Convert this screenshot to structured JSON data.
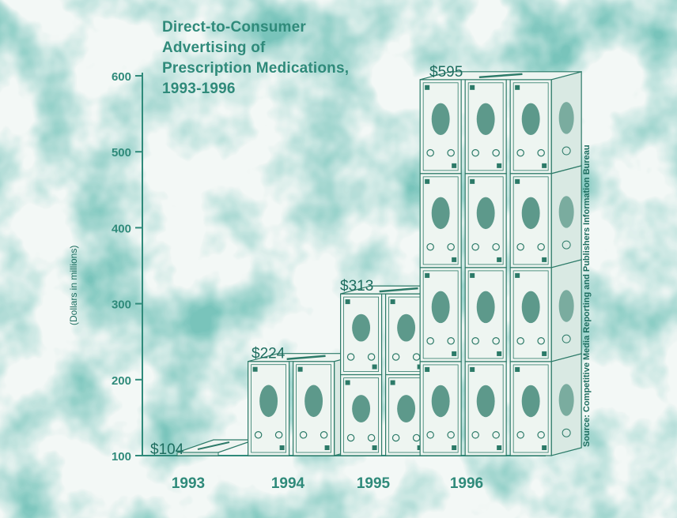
{
  "chart_data": {
    "type": "bar",
    "title": [
      "Direct-to-Consumer",
      "Advertising of",
      "Prescription Medications,",
      "1993-1996"
    ],
    "ylabel": "(Dollars in millions)",
    "categories": [
      "1993",
      "1994",
      "1995",
      "1996"
    ],
    "values": [
      104,
      224,
      313,
      595
    ],
    "value_labels": [
      "$104",
      "$224",
      "$313",
      "$595"
    ],
    "yticks": [
      100,
      200,
      300,
      400,
      500,
      600
    ],
    "ylim": [
      100,
      600
    ],
    "grid": false,
    "source": "Source:  Competitive Media Reporting and Publishers Information Bureau",
    "colors": {
      "accent": "#2f8a7a",
      "dark": "#1d6d5f",
      "bill_face": "#eef5f1",
      "bill_side": "#d9e9e3",
      "bill_ink": "#2c7a68"
    }
  }
}
